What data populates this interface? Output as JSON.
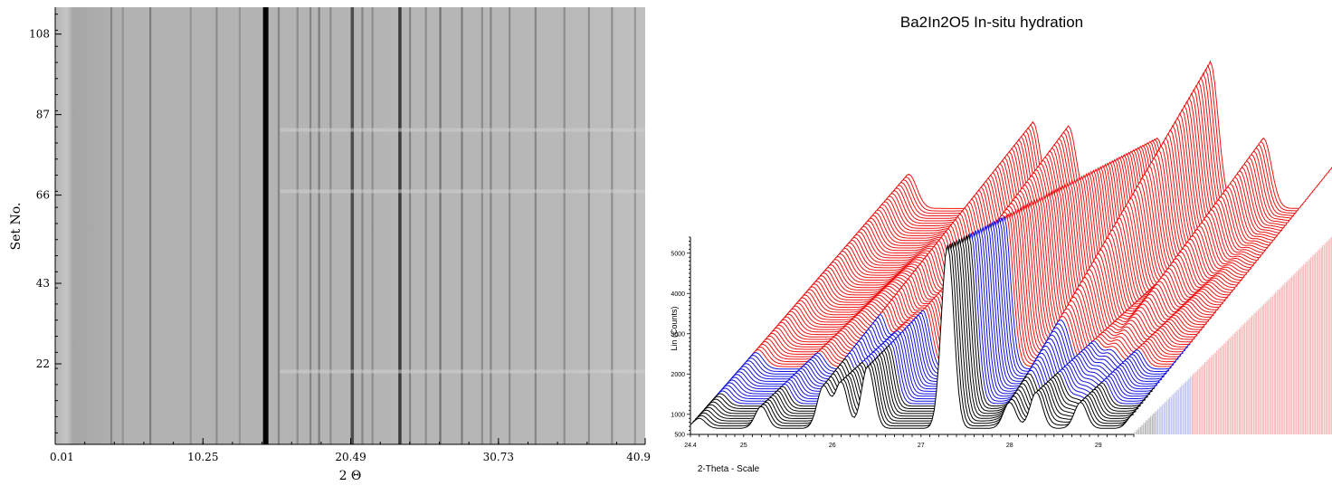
{
  "chart_data": [
    {
      "type": "heatmap",
      "title": "",
      "xlabel": "2 Θ",
      "ylabel": "Set No.",
      "xlim": [
        0.01,
        40.9
      ],
      "ylim": [
        1,
        115
      ],
      "x_ticks": [
        "0.01",
        "10.25",
        "20.49",
        "30.73",
        "40.9"
      ],
      "x_tick_values": [
        0.01,
        10.25,
        20.49,
        30.73,
        40.9
      ],
      "y_ticks": [
        "22",
        "43",
        "66",
        "87",
        "108"
      ],
      "y_tick_values": [
        22,
        43,
        66,
        87,
        108
      ],
      "colormap": "grayscale",
      "line_positions": [
        {
          "x": 3.9,
          "darkness": 0.35
        },
        {
          "x": 4.7,
          "darkness": 0.25
        },
        {
          "x": 6.6,
          "darkness": 0.4
        },
        {
          "x": 9.4,
          "darkness": 0.25
        },
        {
          "x": 11.2,
          "darkness": 0.3
        },
        {
          "x": 12.8,
          "darkness": 0.25
        },
        {
          "x": 14.6,
          "darkness": 0.98
        },
        {
          "x": 15.5,
          "darkness": 0.35
        },
        {
          "x": 16.8,
          "darkness": 0.3
        },
        {
          "x": 17.7,
          "darkness": 0.35
        },
        {
          "x": 18.3,
          "darkness": 0.4
        },
        {
          "x": 19.1,
          "darkness": 0.3
        },
        {
          "x": 20.6,
          "darkness": 0.7
        },
        {
          "x": 21.3,
          "darkness": 0.35
        },
        {
          "x": 22.0,
          "darkness": 0.3
        },
        {
          "x": 23.9,
          "darkness": 0.8
        },
        {
          "x": 24.6,
          "darkness": 0.35
        },
        {
          "x": 25.7,
          "darkness": 0.3
        },
        {
          "x": 26.7,
          "darkness": 0.45
        },
        {
          "x": 28.2,
          "darkness": 0.4
        },
        {
          "x": 29.6,
          "darkness": 0.3
        },
        {
          "x": 30.2,
          "darkness": 0.35
        },
        {
          "x": 31.5,
          "darkness": 0.3
        },
        {
          "x": 33.3,
          "darkness": 0.35
        },
        {
          "x": 35.3,
          "darkness": 0.3
        },
        {
          "x": 37.0,
          "darkness": 0.3
        },
        {
          "x": 38.6,
          "darkness": 0.3
        },
        {
          "x": 40.2,
          "darkness": 0.25
        }
      ],
      "set_transitions": [
        20,
        67,
        83
      ]
    },
    {
      "type": "line",
      "title": "Ba2In2O5 In-situ hydration",
      "xlabel": "2-Theta - Scale",
      "ylabel": "Lin (Counts)",
      "xlim": [
        24.4,
        29.4
      ],
      "ylim": [
        500,
        5400
      ],
      "x_ticks": [
        "24.4",
        "25",
        "26",
        "27",
        "28",
        "29"
      ],
      "x_tick_values": [
        24.4,
        25,
        26,
        27,
        28,
        29
      ],
      "y_ticks": [
        "500",
        "1000",
        "2000",
        "3000",
        "4000",
        "5000"
      ],
      "y_tick_values": [
        500,
        1000,
        2000,
        3000,
        4000,
        5000
      ],
      "layout": "waterfall-3d",
      "series_groups": [
        {
          "color": "#000000",
          "count": 10
        },
        {
          "color": "#1010e0",
          "count": 15
        },
        {
          "color": "#ee1111",
          "count": 65
        }
      ],
      "peaks_front": [
        {
          "x": 24.5,
          "y": 900
        },
        {
          "x": 25.2,
          "y": 1200
        },
        {
          "x": 25.9,
          "y": 1700
        },
        {
          "x": 26.1,
          "y": 1800
        },
        {
          "x": 26.4,
          "y": 2200
        },
        {
          "x": 27.3,
          "y": 5200
        },
        {
          "x": 28.0,
          "y": 1300
        },
        {
          "x": 28.3,
          "y": 1550
        },
        {
          "x": 28.8,
          "y": 1300
        },
        {
          "x": 29.4,
          "y": 1000
        }
      ],
      "peaks_back": [
        {
          "x": 24.5,
          "y": 1800
        },
        {
          "x": 25.9,
          "y": 3100
        },
        {
          "x": 26.3,
          "y": 3000
        },
        {
          "x": 27.3,
          "y": 2700
        },
        {
          "x": 27.9,
          "y": 4600
        },
        {
          "x": 28.5,
          "y": 2700
        },
        {
          "x": 29.4,
          "y": 2300
        }
      ]
    }
  ]
}
